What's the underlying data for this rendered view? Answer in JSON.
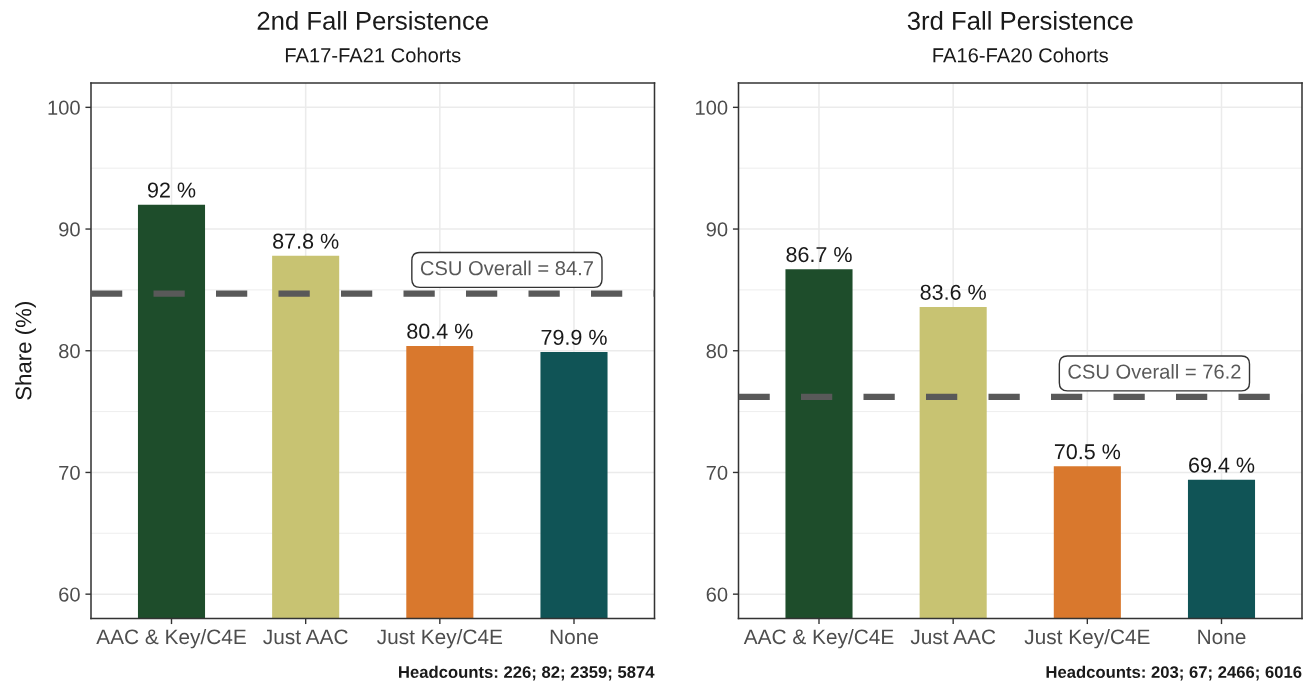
{
  "chart_data": [
    {
      "type": "bar",
      "title": "2nd Fall Persistence",
      "subtitle": "FA17-FA21 Cohorts",
      "ylabel": "Share (%)",
      "categories": [
        "AAC & Key/C4E",
        "Just AAC",
        "Just Key/C4E",
        "None"
      ],
      "values": [
        92,
        87.8,
        80.4,
        79.9
      ],
      "colors": [
        "#1e4d2b",
        "#c8c372",
        "#d9782d",
        "#105456"
      ],
      "value_labels": [
        "92 %",
        "87.8 %",
        "80.4 %",
        "79.9 %"
      ],
      "ylim": [
        58,
        102
      ],
      "yticks": [
        60,
        70,
        80,
        90,
        100
      ],
      "grid": true,
      "ref_lines": [
        {
          "axis": "y",
          "value": 84.7,
          "label": "CSU Overall = 84.7",
          "color": "#595959",
          "line_style": "dashed"
        }
      ],
      "annotations": [
        "Headcounts: 226; 82; 2359; 5874"
      ]
    },
    {
      "type": "bar",
      "title": "3rd Fall Persistence",
      "subtitle": "FA16-FA20 Cohorts",
      "categories": [
        "AAC & Key/C4E",
        "Just AAC",
        "Just Key/C4E",
        "None"
      ],
      "values": [
        86.7,
        83.6,
        70.5,
        69.4
      ],
      "colors": [
        "#1e4d2b",
        "#c8c372",
        "#d9782d",
        "#105456"
      ],
      "value_labels": [
        "86.7 %",
        "83.6 %",
        "70.5 %",
        "69.4 %"
      ],
      "ylim": [
        58,
        102
      ],
      "yticks": [
        60,
        70,
        80,
        90,
        100
      ],
      "grid": true,
      "ref_lines": [
        {
          "axis": "y",
          "value": 76.2,
          "label": "CSU Overall = 76.2",
          "color": "#595959",
          "line_style": "dashed"
        }
      ],
      "annotations": [
        "Headcounts: 203; 67; 2466; 6016"
      ]
    }
  ]
}
